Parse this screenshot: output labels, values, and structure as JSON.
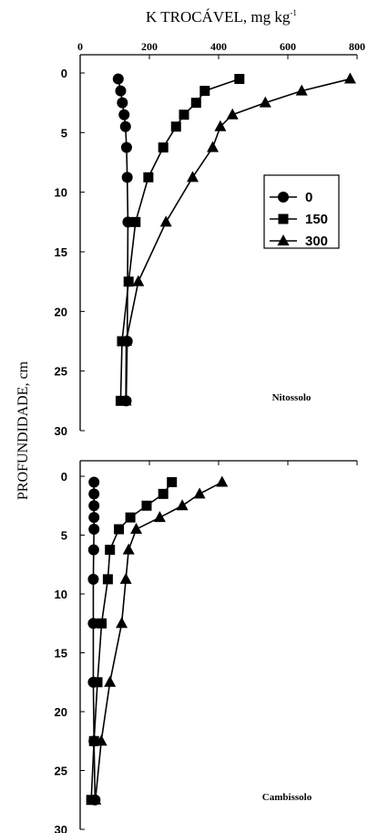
{
  "chart_data": {
    "type": "line",
    "xlabel_main": "K TROCÁVEL, mg kg",
    "xlabel_sup": "-1",
    "ylabel": "PROFUNDIDADE, cm",
    "xlim": [
      0,
      800
    ],
    "xticks": [
      "0",
      "200",
      "400",
      "600",
      "800"
    ],
    "ylim": [
      0,
      30
    ],
    "yticks": [
      "0",
      "5",
      "10",
      "15",
      "20",
      "25",
      "30"
    ],
    "legend": {
      "position": "right",
      "entries": [
        "0",
        "150",
        "300"
      ]
    },
    "panels": [
      {
        "title": "Nitossolo",
        "series": [
          {
            "name": "0",
            "marker": "circle",
            "x": [
              110,
              117,
              122,
              127,
              131,
              134,
              136,
              138,
              136,
              133
            ],
            "y": [
              0.5,
              1.5,
              2.5,
              3.5,
              4.5,
              6.25,
              8.75,
              12.5,
              22.5,
              27.5
            ]
          },
          {
            "name": "150",
            "marker": "square",
            "x": [
              460,
              360,
              335,
              300,
              277,
              240,
              197,
              160,
              140,
              121,
              117
            ],
            "y": [
              0.5,
              1.5,
              2.5,
              3.5,
              4.5,
              6.25,
              8.75,
              12.5,
              17.5,
              22.5,
              27.5
            ]
          },
          {
            "name": "300",
            "marker": "triangle",
            "x": [
              780,
              640,
              535,
              440,
              405,
              383,
              325,
              248,
              168,
              133,
              132
            ],
            "y": [
              0.5,
              1.5,
              2.5,
              3.5,
              4.5,
              6.25,
              8.75,
              12.5,
              17.5,
              22.5,
              27.5
            ]
          }
        ]
      },
      {
        "title": "Cambissolo",
        "series": [
          {
            "name": "0",
            "marker": "circle",
            "x": [
              40,
              40,
              40,
              40,
              40,
              39,
              38,
              38,
              38,
              40,
              43
            ],
            "y": [
              0.5,
              1.5,
              2.5,
              3.5,
              4.5,
              6.25,
              8.75,
              12.5,
              17.5,
              22.5,
              27.5
            ]
          },
          {
            "name": "150",
            "marker": "square",
            "x": [
              265,
              240,
              192,
              145,
              112,
              86,
              80,
              62,
              50,
              40,
              32
            ],
            "y": [
              0.5,
              1.5,
              2.5,
              3.5,
              4.5,
              6.25,
              8.75,
              12.5,
              17.5,
              22.5,
              27.5
            ]
          },
          {
            "name": "300",
            "marker": "triangle",
            "x": [
              410,
              345,
              295,
              230,
              162,
              140,
              132,
              120,
              86,
              61,
              44
            ],
            "y": [
              0.5,
              1.5,
              2.5,
              3.5,
              4.5,
              6.25,
              8.75,
              12.5,
              17.5,
              22.5,
              27.5
            ]
          }
        ]
      }
    ]
  }
}
